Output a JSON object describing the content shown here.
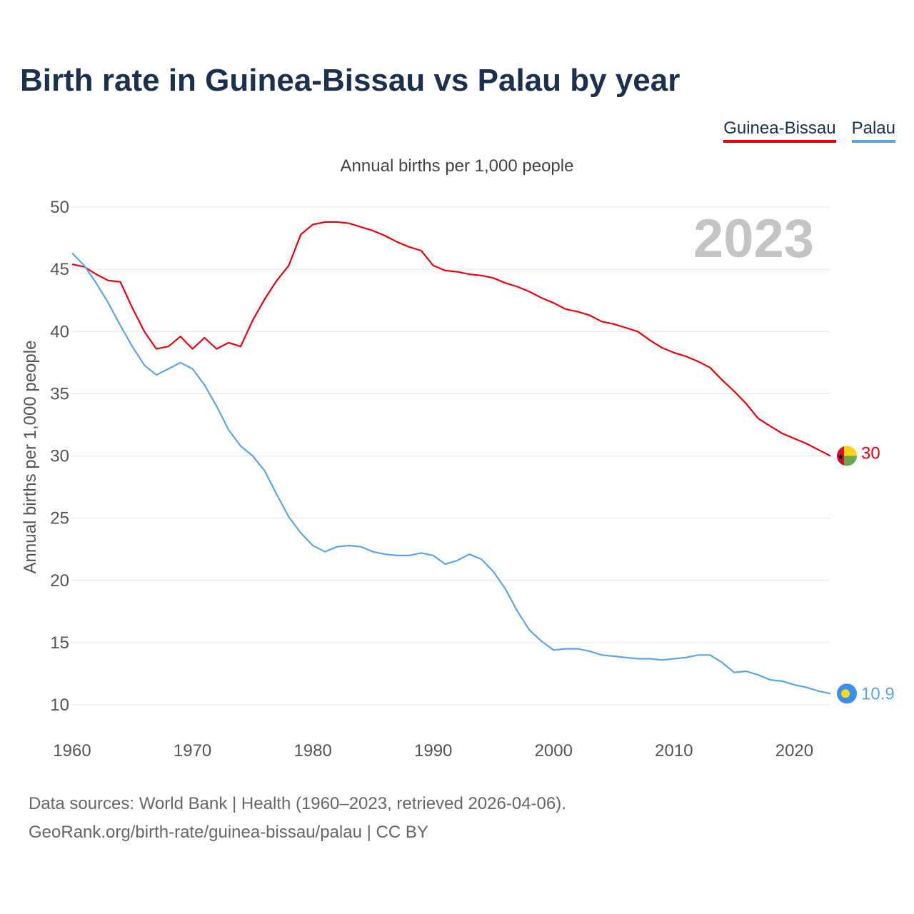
{
  "title": "Birth rate in Guinea-Bissau vs Palau by year",
  "legend": {
    "items": [
      {
        "label": "Guinea-Bissau",
        "color": "#e8000b"
      },
      {
        "label": "Palau",
        "color": "#5aa5ea"
      }
    ]
  },
  "source": {
    "line1": "Data sources: World Bank | Health (1960–2023, retrieved 2026-04-06).",
    "line2": "GeoRank.org/birth-rate/guinea-bissau/palau | CC BY"
  },
  "chart_data": {
    "type": "line",
    "title": "Annual births per 1,000 people",
    "ylabel": "Annual births per 1,000 people",
    "xlabel": "",
    "year_watermark": "2023",
    "xlim": [
      1960,
      2023
    ],
    "ylim": [
      10,
      50
    ],
    "x_ticks": [
      1960,
      1970,
      1980,
      1990,
      2000,
      2010,
      2020
    ],
    "y_ticks": [
      10,
      15,
      20,
      25,
      30,
      35,
      40,
      45,
      50
    ],
    "grid": true,
    "x": [
      1960,
      1961,
      1962,
      1963,
      1964,
      1965,
      1966,
      1967,
      1968,
      1969,
      1970,
      1971,
      1972,
      1973,
      1974,
      1975,
      1976,
      1977,
      1978,
      1979,
      1980,
      1981,
      1982,
      1983,
      1984,
      1985,
      1986,
      1987,
      1988,
      1989,
      1990,
      1991,
      1992,
      1993,
      1994,
      1995,
      1996,
      1997,
      1998,
      1999,
      2000,
      2001,
      2002,
      2003,
      2004,
      2005,
      2006,
      2007,
      2008,
      2009,
      2010,
      2011,
      2012,
      2013,
      2014,
      2015,
      2016,
      2017,
      2018,
      2019,
      2020,
      2021,
      2022,
      2023
    ],
    "series": [
      {
        "name": "Guinea-Bissau",
        "color": "#e8000b",
        "end_label": "30",
        "values": [
          45.4,
          45.2,
          44.6,
          44.1,
          44.0,
          41.9,
          40.0,
          38.6,
          38.8,
          39.6,
          38.6,
          39.5,
          38.6,
          39.1,
          38.8,
          40.9,
          42.6,
          44.1,
          45.3,
          47.8,
          48.6,
          48.8,
          48.8,
          48.7,
          48.4,
          48.1,
          47.7,
          47.2,
          46.8,
          46.5,
          45.3,
          44.9,
          44.8,
          44.6,
          44.5,
          44.3,
          43.9,
          43.6,
          43.2,
          42.7,
          42.3,
          41.8,
          41.6,
          41.3,
          40.8,
          40.6,
          40.3,
          40.0,
          39.3,
          38.7,
          38.3,
          38.0,
          37.6,
          37.1,
          36.1,
          35.2,
          34.2,
          33.0,
          32.4,
          31.8,
          31.4,
          31.0,
          30.5,
          30.0
        ]
      },
      {
        "name": "Palau",
        "color": "#5aa5ea",
        "end_label": "10.9",
        "values": [
          46.3,
          45.3,
          43.9,
          42.3,
          40.5,
          38.8,
          37.3,
          36.5,
          37.0,
          37.5,
          37.0,
          35.7,
          34.0,
          32.1,
          30.8,
          30.0,
          28.8,
          26.9,
          25.1,
          23.8,
          22.8,
          22.3,
          22.7,
          22.8,
          22.7,
          22.3,
          22.1,
          22.0,
          22.0,
          22.2,
          22.0,
          21.3,
          21.6,
          22.1,
          21.7,
          20.7,
          19.3,
          17.5,
          16.0,
          15.1,
          14.4,
          14.5,
          14.5,
          14.3,
          14.0,
          13.9,
          13.8,
          13.7,
          13.7,
          13.6,
          13.7,
          13.8,
          14.0,
          14.0,
          13.4,
          12.6,
          12.7,
          12.4,
          12.0,
          11.9,
          11.6,
          11.4,
          11.1,
          10.9
        ]
      }
    ]
  }
}
